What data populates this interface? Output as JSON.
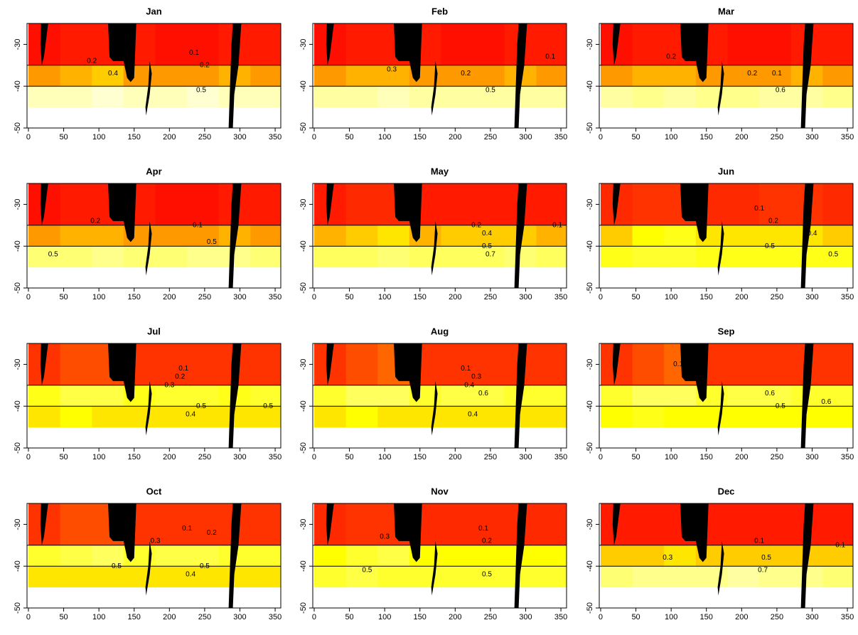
{
  "chart_data": [
    {
      "type": "heatmap",
      "title": "Jan",
      "x": [
        0,
        45,
        90,
        135,
        180,
        225,
        270,
        315,
        360
      ],
      "y": [
        -25,
        -35,
        -40,
        -45
      ],
      "values": [
        [
          0.03,
          0.05,
          0.05,
          0.05,
          0.03,
          0.03,
          0.05,
          0.05
        ],
        [
          0.3,
          0.35,
          0.4,
          0.3,
          0.3,
          0.3,
          0.35,
          0.3
        ],
        [
          0.9,
          0.9,
          0.95,
          0.9,
          0.9,
          0.95,
          0.9,
          0.9
        ]
      ],
      "contour_labels": [
        {
          "x": 90,
          "y": -34,
          "label": "0.2"
        },
        {
          "x": 120,
          "y": -37,
          "label": "0.4"
        },
        {
          "x": 235,
          "y": -32,
          "label": "0.1"
        },
        {
          "x": 250,
          "y": -35,
          "label": "0.2"
        },
        {
          "x": 245,
          "y": -41,
          "label": "0.5"
        }
      ],
      "xlim": [
        -2,
        358
      ],
      "ylim": [
        -50,
        -25
      ],
      "xticks": [
        0,
        50,
        100,
        150,
        200,
        250,
        300,
        350
      ],
      "yticks": [
        -30,
        -40,
        -50
      ],
      "colors": [
        "#ff0000",
        "#ffff00",
        "#ffffe8"
      ]
    },
    {
      "type": "heatmap",
      "title": "Feb",
      "x": [
        0,
        45,
        90,
        135,
        180,
        225,
        270,
        315,
        360
      ],
      "y": [
        -25,
        -35,
        -40,
        -45
      ],
      "values": [
        [
          0.03,
          0.05,
          0.05,
          0.05,
          0.03,
          0.03,
          0.05,
          0.05
        ],
        [
          0.3,
          0.35,
          0.35,
          0.3,
          0.3,
          0.3,
          0.35,
          0.3
        ],
        [
          0.85,
          0.85,
          0.9,
          0.85,
          0.85,
          0.85,
          0.85,
          0.85
        ]
      ],
      "contour_labels": [
        {
          "x": 110,
          "y": -36,
          "label": "0.3"
        },
        {
          "x": 215,
          "y": -37,
          "label": "0.2"
        },
        {
          "x": 250,
          "y": -41,
          "label": "0.5"
        },
        {
          "x": 335,
          "y": -33,
          "label": "0.1"
        }
      ],
      "xlim": [
        -2,
        358
      ],
      "ylim": [
        -50,
        -25
      ],
      "xticks": [
        0,
        50,
        100,
        150,
        200,
        250,
        300,
        350
      ],
      "yticks": [
        -30,
        -40,
        -50
      ],
      "colors": [
        "#ff0000",
        "#ffff00",
        "#ffffe8"
      ]
    },
    {
      "type": "heatmap",
      "title": "Mar",
      "x": [
        0,
        45,
        90,
        135,
        180,
        225,
        270,
        315,
        360
      ],
      "y": [
        -25,
        -35,
        -40,
        -45
      ],
      "values": [
        [
          0.03,
          0.05,
          0.05,
          0.05,
          0.03,
          0.03,
          0.05,
          0.05
        ],
        [
          0.3,
          0.35,
          0.35,
          0.3,
          0.3,
          0.3,
          0.35,
          0.3
        ],
        [
          0.85,
          0.8,
          0.85,
          0.8,
          0.8,
          0.85,
          0.85,
          0.8
        ]
      ],
      "contour_labels": [
        {
          "x": 100,
          "y": -33,
          "label": "0.2"
        },
        {
          "x": 215,
          "y": -37,
          "label": "0.2"
        },
        {
          "x": 250,
          "y": -37,
          "label": "0.1"
        },
        {
          "x": 255,
          "y": -41,
          "label": "0.6"
        }
      ],
      "xlim": [
        -2,
        358
      ],
      "ylim": [
        -50,
        -25
      ],
      "xticks": [
        0,
        50,
        100,
        150,
        200,
        250,
        300,
        350
      ],
      "yticks": [
        -30,
        -40,
        -50
      ],
      "colors": [
        "#ff0000",
        "#ffff00",
        "#ffffe8"
      ]
    },
    {
      "type": "heatmap",
      "title": "Apr",
      "x": [
        0,
        45,
        90,
        135,
        180,
        225,
        270,
        315,
        360
      ],
      "y": [
        -25,
        -35,
        -40,
        -45
      ],
      "values": [
        [
          0.03,
          0.05,
          0.05,
          0.05,
          0.03,
          0.03,
          0.05,
          0.05
        ],
        [
          0.3,
          0.35,
          0.35,
          0.3,
          0.3,
          0.3,
          0.35,
          0.3
        ],
        [
          0.75,
          0.75,
          0.8,
          0.75,
          0.75,
          0.8,
          0.8,
          0.75
        ]
      ],
      "contour_labels": [
        {
          "x": 95,
          "y": -34,
          "label": "0.2"
        },
        {
          "x": 240,
          "y": -35,
          "label": "0.1"
        },
        {
          "x": 260,
          "y": -39,
          "label": "0.5"
        },
        {
          "x": 35,
          "y": -42,
          "label": "0.5"
        }
      ],
      "xlim": [
        -2,
        358
      ],
      "ylim": [
        -50,
        -25
      ],
      "xticks": [
        0,
        50,
        100,
        150,
        200,
        250,
        300,
        350
      ],
      "yticks": [
        -30,
        -40,
        -50
      ],
      "colors": [
        "#ff0000",
        "#ffff00",
        "#ffffe8"
      ]
    },
    {
      "type": "heatmap",
      "title": "May",
      "x": [
        0,
        45,
        90,
        135,
        180,
        225,
        270,
        315,
        360
      ],
      "y": [
        -25,
        -35,
        -40,
        -45
      ],
      "values": [
        [
          0.05,
          0.08,
          0.08,
          0.05,
          0.05,
          0.05,
          0.05,
          0.05
        ],
        [
          0.35,
          0.4,
          0.45,
          0.35,
          0.4,
          0.4,
          0.4,
          0.35
        ],
        [
          0.7,
          0.7,
          0.75,
          0.7,
          0.7,
          0.7,
          0.75,
          0.7
        ]
      ],
      "contour_labels": [
        {
          "x": 230,
          "y": -35,
          "label": "0.2"
        },
        {
          "x": 245,
          "y": -37,
          "label": "0.4"
        },
        {
          "x": 245,
          "y": -40,
          "label": "0.5"
        },
        {
          "x": 250,
          "y": -42,
          "label": "0.7"
        },
        {
          "x": 345,
          "y": -35,
          "label": "0.1"
        }
      ],
      "xlim": [
        -2,
        358
      ],
      "ylim": [
        -50,
        -25
      ],
      "xticks": [
        0,
        50,
        100,
        150,
        200,
        250,
        300,
        350
      ],
      "yticks": [
        -30,
        -40,
        -50
      ],
      "colors": [
        "#ff0000",
        "#ffff00",
        "#ffffe8"
      ]
    },
    {
      "type": "heatmap",
      "title": "Jun",
      "x": [
        0,
        45,
        90,
        135,
        180,
        225,
        270,
        315,
        360
      ],
      "y": [
        -25,
        -35,
        -40,
        -45
      ],
      "values": [
        [
          0.08,
          0.1,
          0.1,
          0.08,
          0.08,
          0.1,
          0.1,
          0.08
        ],
        [
          0.4,
          0.5,
          0.55,
          0.45,
          0.45,
          0.45,
          0.45,
          0.4
        ],
        [
          0.55,
          0.6,
          0.6,
          0.55,
          0.55,
          0.55,
          0.55,
          0.55
        ]
      ],
      "contour_labels": [
        {
          "x": 225,
          "y": -31,
          "label": "0.1"
        },
        {
          "x": 245,
          "y": -34,
          "label": "0.2"
        },
        {
          "x": 300,
          "y": -37,
          "label": "0.4"
        },
        {
          "x": 240,
          "y": -40,
          "label": "0.5"
        },
        {
          "x": 330,
          "y": -42,
          "label": "0.5"
        }
      ],
      "xlim": [
        -2,
        358
      ],
      "ylim": [
        -50,
        -25
      ],
      "xticks": [
        0,
        50,
        100,
        150,
        200,
        250,
        300,
        350
      ],
      "yticks": [
        -30,
        -40,
        -50
      ],
      "colors": [
        "#ff0000",
        "#ffff00",
        "#ffffe8"
      ]
    },
    {
      "type": "heatmap",
      "title": "Jul",
      "x": [
        0,
        45,
        90,
        135,
        180,
        225,
        270,
        315,
        360
      ],
      "y": [
        -25,
        -35,
        -40,
        -45
      ],
      "values": [
        [
          0.1,
          0.15,
          0.15,
          0.1,
          0.1,
          0.1,
          0.1,
          0.1
        ],
        [
          0.55,
          0.65,
          0.65,
          0.55,
          0.6,
          0.6,
          0.55,
          0.6
        ],
        [
          0.45,
          0.5,
          0.45,
          0.45,
          0.45,
          0.45,
          0.45,
          0.45
        ]
      ],
      "contour_labels": [
        {
          "x": 220,
          "y": -31,
          "label": "0.1"
        },
        {
          "x": 215,
          "y": -33,
          "label": "0.2"
        },
        {
          "x": 200,
          "y": -35,
          "label": "0.3"
        },
        {
          "x": 245,
          "y": -40,
          "label": "0.5"
        },
        {
          "x": 230,
          "y": -42,
          "label": "0.4"
        },
        {
          "x": 340,
          "y": -40,
          "label": "0.5"
        }
      ],
      "xlim": [
        -2,
        358
      ],
      "ylim": [
        -50,
        -25
      ],
      "xticks": [
        0,
        50,
        100,
        150,
        200,
        250,
        300,
        350
      ],
      "yticks": [
        -30,
        -40,
        -50
      ],
      "colors": [
        "#ff0000",
        "#ffff00",
        "#ffffe8"
      ]
    },
    {
      "type": "heatmap",
      "title": "Aug",
      "x": [
        0,
        45,
        90,
        135,
        180,
        225,
        270,
        315,
        360
      ],
      "y": [
        -25,
        -35,
        -40,
        -45
      ],
      "values": [
        [
          0.1,
          0.15,
          0.2,
          0.1,
          0.1,
          0.1,
          0.1,
          0.1
        ],
        [
          0.6,
          0.7,
          0.7,
          0.6,
          0.65,
          0.65,
          0.6,
          0.6
        ],
        [
          0.45,
          0.5,
          0.45,
          0.45,
          0.45,
          0.45,
          0.45,
          0.45
        ]
      ],
      "contour_labels": [
        {
          "x": 215,
          "y": -31,
          "label": "0.1"
        },
        {
          "x": 230,
          "y": -33,
          "label": "0.3"
        },
        {
          "x": 220,
          "y": -35,
          "label": "0.4"
        },
        {
          "x": 240,
          "y": -37,
          "label": "0.6"
        },
        {
          "x": 225,
          "y": -42,
          "label": "0.4"
        }
      ],
      "xlim": [
        -2,
        358
      ],
      "ylim": [
        -50,
        -25
      ],
      "xticks": [
        0,
        50,
        100,
        150,
        200,
        250,
        300,
        350
      ],
      "yticks": [
        -30,
        -40,
        -50
      ],
      "colors": [
        "#ff0000",
        "#ffff00",
        "#ffffe8"
      ]
    },
    {
      "type": "heatmap",
      "title": "Sep",
      "x": [
        0,
        45,
        90,
        135,
        180,
        225,
        270,
        315,
        360
      ],
      "y": [
        -25,
        -35,
        -40,
        -45
      ],
      "values": [
        [
          0.1,
          0.15,
          0.2,
          0.1,
          0.1,
          0.1,
          0.1,
          0.1
        ],
        [
          0.6,
          0.7,
          0.7,
          0.6,
          0.65,
          0.65,
          0.6,
          0.6
        ],
        [
          0.5,
          0.55,
          0.5,
          0.5,
          0.5,
          0.5,
          0.5,
          0.5
        ]
      ],
      "contour_labels": [
        {
          "x": 110,
          "y": -30,
          "label": "0.1"
        },
        {
          "x": 240,
          "y": -37,
          "label": "0.6"
        },
        {
          "x": 255,
          "y": -40,
          "label": "0.5"
        },
        {
          "x": 320,
          "y": -39,
          "label": "0.6"
        }
      ],
      "xlim": [
        -2,
        358
      ],
      "ylim": [
        -50,
        -25
      ],
      "xticks": [
        0,
        50,
        100,
        150,
        200,
        250,
        300,
        350
      ],
      "yticks": [
        -30,
        -40,
        -50
      ],
      "colors": [
        "#ff0000",
        "#ffff00",
        "#ffffe8"
      ]
    },
    {
      "type": "heatmap",
      "title": "Oct",
      "x": [
        0,
        45,
        90,
        135,
        180,
        225,
        270,
        315,
        360
      ],
      "y": [
        -25,
        -35,
        -40,
        -45
      ],
      "values": [
        [
          0.1,
          0.15,
          0.15,
          0.1,
          0.1,
          0.1,
          0.1,
          0.1
        ],
        [
          0.6,
          0.65,
          0.7,
          0.6,
          0.65,
          0.65,
          0.6,
          0.6
        ],
        [
          0.45,
          0.45,
          0.45,
          0.45,
          0.45,
          0.45,
          0.45,
          0.45
        ]
      ],
      "contour_labels": [
        {
          "x": 225,
          "y": -31,
          "label": "0.1"
        },
        {
          "x": 260,
          "y": -32,
          "label": "0.2"
        },
        {
          "x": 180,
          "y": -34,
          "label": "0.3"
        },
        {
          "x": 125,
          "y": -40,
          "label": "0.5"
        },
        {
          "x": 230,
          "y": -42,
          "label": "0.4"
        },
        {
          "x": 250,
          "y": -40,
          "label": "0.5"
        }
      ],
      "xlim": [
        -2,
        358
      ],
      "ylim": [
        -50,
        -25
      ],
      "xticks": [
        0,
        50,
        100,
        150,
        200,
        250,
        300,
        350
      ],
      "yticks": [
        -30,
        -40,
        -50
      ],
      "colors": [
        "#ff0000",
        "#ffff00",
        "#ffffe8"
      ]
    },
    {
      "type": "heatmap",
      "title": "Nov",
      "x": [
        0,
        45,
        90,
        135,
        180,
        225,
        270,
        315,
        360
      ],
      "y": [
        -25,
        -35,
        -40,
        -45
      ],
      "values": [
        [
          0.08,
          0.1,
          0.1,
          0.08,
          0.08,
          0.08,
          0.08,
          0.08
        ],
        [
          0.5,
          0.6,
          0.65,
          0.5,
          0.5,
          0.5,
          0.5,
          0.5
        ],
        [
          0.6,
          0.65,
          0.6,
          0.6,
          0.6,
          0.6,
          0.6,
          0.6
        ]
      ],
      "contour_labels": [
        {
          "x": 240,
          "y": -31,
          "label": "0.1"
        },
        {
          "x": 245,
          "y": -34,
          "label": "0.2"
        },
        {
          "x": 100,
          "y": -33,
          "label": "0.3"
        },
        {
          "x": 75,
          "y": -41,
          "label": "0.5"
        },
        {
          "x": 245,
          "y": -42,
          "label": "0.5"
        }
      ],
      "xlim": [
        -2,
        358
      ],
      "ylim": [
        -50,
        -25
      ],
      "xticks": [
        0,
        50,
        100,
        150,
        200,
        250,
        300,
        350
      ],
      "yticks": [
        -30,
        -40,
        -50
      ],
      "colors": [
        "#ff0000",
        "#ffff00",
        "#ffffe8"
      ]
    },
    {
      "type": "heatmap",
      "title": "Dec",
      "x": [
        0,
        45,
        90,
        135,
        180,
        225,
        270,
        315,
        360
      ],
      "y": [
        -25,
        -35,
        -40,
        -45
      ],
      "values": [
        [
          0.05,
          0.05,
          0.05,
          0.05,
          0.05,
          0.05,
          0.05,
          0.05
        ],
        [
          0.4,
          0.4,
          0.45,
          0.4,
          0.4,
          0.4,
          0.4,
          0.4
        ],
        [
          0.75,
          0.8,
          0.8,
          0.8,
          0.85,
          0.8,
          0.8,
          0.75
        ]
      ],
      "contour_labels": [
        {
          "x": 225,
          "y": -34,
          "label": "0.1"
        },
        {
          "x": 235,
          "y": -38,
          "label": "0.5"
        },
        {
          "x": 230,
          "y": -41,
          "label": "0.7"
        },
        {
          "x": 95,
          "y": -38,
          "label": "0.3"
        },
        {
          "x": 340,
          "y": -35,
          "label": "0.1"
        }
      ],
      "xlim": [
        -2,
        358
      ],
      "ylim": [
        -50,
        -25
      ],
      "xticks": [
        0,
        50,
        100,
        150,
        200,
        250,
        300,
        350
      ],
      "yticks": [
        -30,
        -40,
        -50
      ],
      "colors": [
        "#ff0000",
        "#ffff00",
        "#ffffe8"
      ]
    }
  ]
}
